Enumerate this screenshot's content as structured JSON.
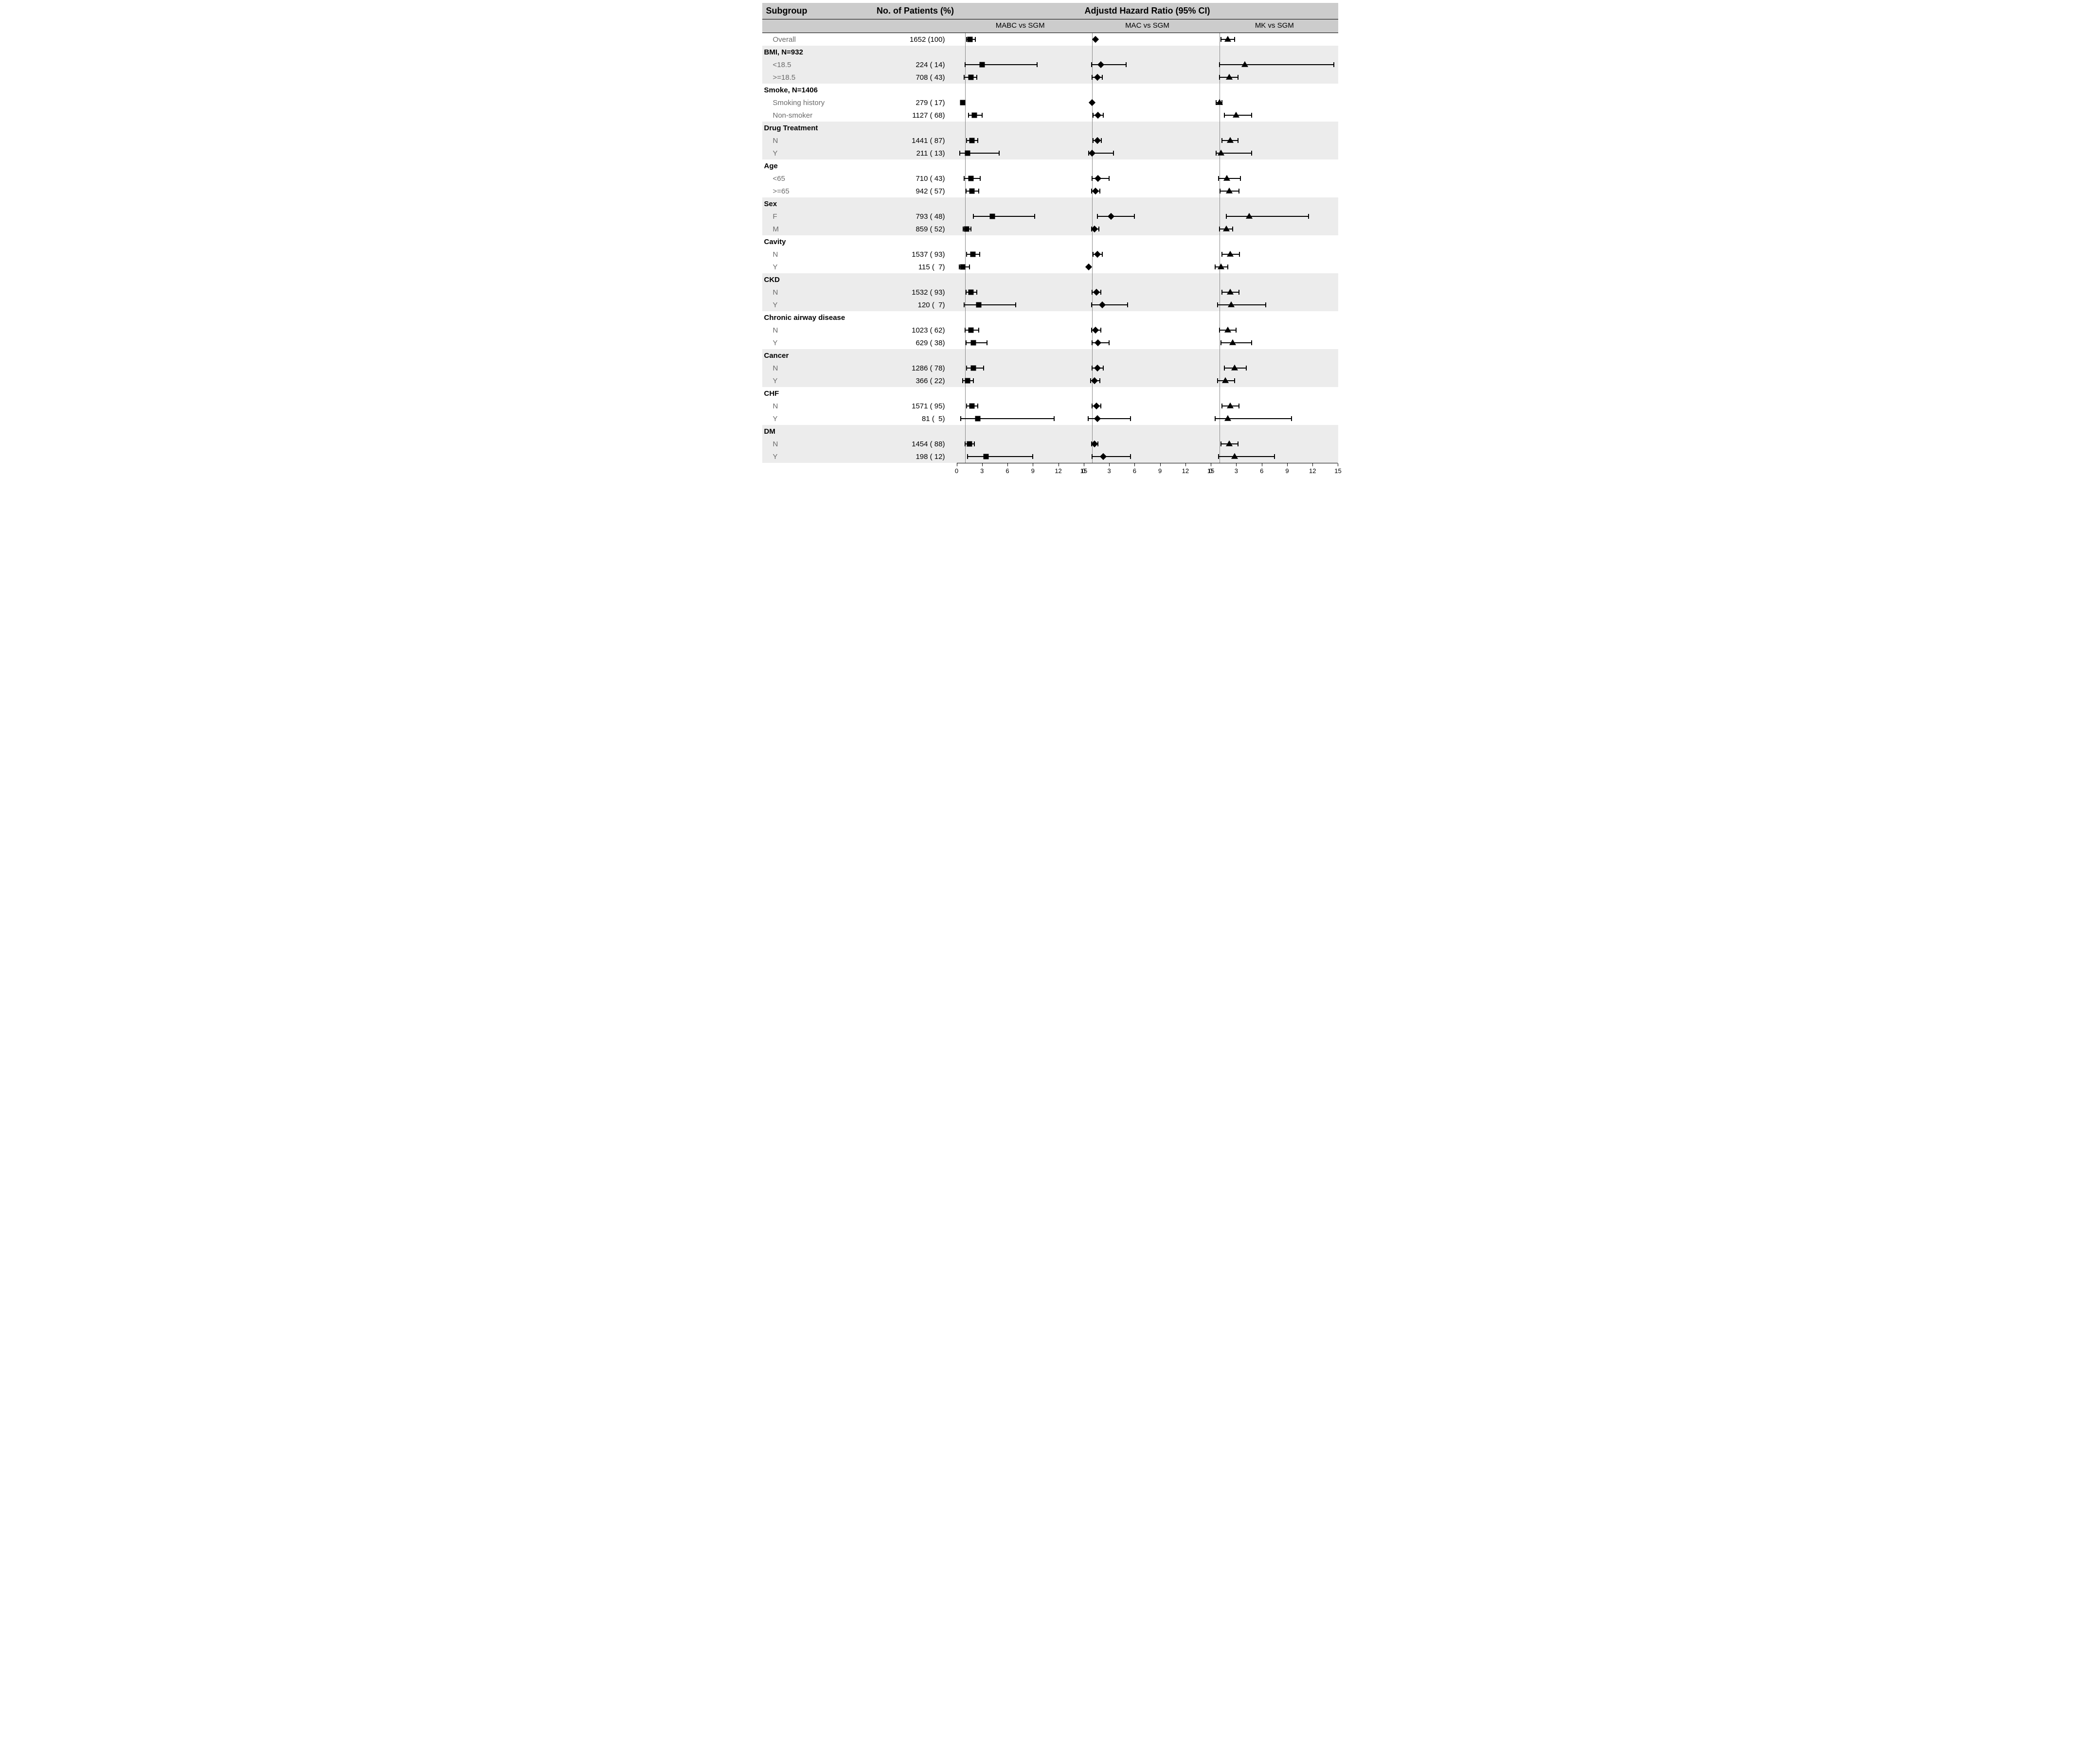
{
  "title_subgroup": "Subgroup",
  "title_n": "No. of Patients (%)",
  "title_hr": "Adjustd Hazard Ratio (95% CI)",
  "axis": {
    "min": 0,
    "max": 15,
    "ticks": [
      0,
      3,
      6,
      9,
      12,
      15
    ],
    "ref": 1
  },
  "colors": {
    "header_bg": "#cccccc",
    "stripe_odd": "#ececec",
    "stripe_even": "#ffffff",
    "text": "#000000",
    "sub_text": "#6a6a6a",
    "line": "#000000",
    "ref_line": "#888888",
    "background": "#ffffff"
  },
  "panels": [
    {
      "label": "MABC vs SGM",
      "marker": "square"
    },
    {
      "label": "MAC vs SGM",
      "marker": "diamond"
    },
    {
      "label": "MK vs SGM",
      "marker": "triangle"
    }
  ],
  "rows": [
    {
      "type": "level",
      "stripe": 0,
      "label": "Overall",
      "n": "1652 (100)",
      "est": [
        {
          "hr": 1.6,
          "lo": 1.2,
          "hi": 2.2
        },
        {
          "hr": 1.4,
          "lo": 1.4,
          "hi": 1.4
        },
        {
          "hr": 2.0,
          "lo": 1.2,
          "hi": 2.8
        }
      ]
    },
    {
      "type": "group",
      "stripe": 1,
      "label": "BMI, N=932",
      "n": ""
    },
    {
      "type": "level",
      "stripe": 1,
      "label": "<18.5",
      "n": "224 ( 14)",
      "est": [
        {
          "hr": 3.0,
          "lo": 1.0,
          "hi": 9.5
        },
        {
          "hr": 2.0,
          "lo": 0.9,
          "hi": 5.0
        },
        {
          "hr": 4.0,
          "lo": 1.0,
          "hi": 14.5
        }
      ]
    },
    {
      "type": "level",
      "stripe": 1,
      "label": ">=18.5",
      "n": "708 ( 43)",
      "est": [
        {
          "hr": 1.7,
          "lo": 0.9,
          "hi": 2.4
        },
        {
          "hr": 1.6,
          "lo": 1.0,
          "hi": 2.2
        },
        {
          "hr": 2.2,
          "lo": 1.0,
          "hi": 3.2
        }
      ]
    },
    {
      "type": "group",
      "stripe": 0,
      "label": "Smoke, N=1406",
      "n": ""
    },
    {
      "type": "level",
      "stripe": 0,
      "label": "Smoking history",
      "n": "279 ( 17)",
      "est": [
        {
          "hr": 0.7,
          "lo": 0.7,
          "hi": 0.7
        },
        {
          "hr": 1.0,
          "lo": 1.0,
          "hi": 1.0
        },
        {
          "hr": 1.0,
          "lo": 0.6,
          "hi": 1.3
        }
      ]
    },
    {
      "type": "level",
      "stripe": 0,
      "label": "Non-smoker",
      "n": "1127 ( 68)",
      "est": [
        {
          "hr": 2.1,
          "lo": 1.4,
          "hi": 3.0
        },
        {
          "hr": 1.7,
          "lo": 1.1,
          "hi": 2.3
        },
        {
          "hr": 3.0,
          "lo": 1.6,
          "hi": 4.8
        }
      ]
    },
    {
      "type": "group",
      "stripe": 1,
      "label": "Drug Treatment",
      "n": ""
    },
    {
      "type": "level",
      "stripe": 1,
      "label": "N",
      "n": "1441 ( 87)",
      "est": [
        {
          "hr": 1.8,
          "lo": 1.2,
          "hi": 2.5
        },
        {
          "hr": 1.6,
          "lo": 1.1,
          "hi": 2.1
        },
        {
          "hr": 2.3,
          "lo": 1.3,
          "hi": 3.2
        }
      ]
    },
    {
      "type": "level",
      "stripe": 1,
      "label": "Y",
      "n": "211 ( 13)",
      "est": [
        {
          "hr": 1.3,
          "lo": 0.4,
          "hi": 5.0
        },
        {
          "hr": 1.0,
          "lo": 0.6,
          "hi": 3.5
        },
        {
          "hr": 1.2,
          "lo": 0.6,
          "hi": 4.8
        }
      ]
    },
    {
      "type": "group",
      "stripe": 0,
      "label": "Age",
      "n": ""
    },
    {
      "type": "level",
      "stripe": 0,
      "label": "<65",
      "n": "710 ( 43)",
      "est": [
        {
          "hr": 1.7,
          "lo": 0.9,
          "hi": 2.8
        },
        {
          "hr": 1.7,
          "lo": 1.0,
          "hi": 3.0
        },
        {
          "hr": 1.9,
          "lo": 0.9,
          "hi": 3.5
        }
      ]
    },
    {
      "type": "level",
      "stripe": 0,
      "label": ">=65",
      "n": "942 ( 57)",
      "est": [
        {
          "hr": 1.8,
          "lo": 1.1,
          "hi": 2.6
        },
        {
          "hr": 1.4,
          "lo": 0.9,
          "hi": 1.9
        },
        {
          "hr": 2.2,
          "lo": 1.1,
          "hi": 3.3
        }
      ]
    },
    {
      "type": "group",
      "stripe": 1,
      "label": "Sex",
      "n": ""
    },
    {
      "type": "level",
      "stripe": 1,
      "label": "F",
      "n": "793 ( 48)",
      "est": [
        {
          "hr": 4.2,
          "lo": 2.0,
          "hi": 9.2
        },
        {
          "hr": 3.2,
          "lo": 1.6,
          "hi": 6.0
        },
        {
          "hr": 4.5,
          "lo": 1.8,
          "hi": 11.5
        }
      ]
    },
    {
      "type": "level",
      "stripe": 1,
      "label": "M",
      "n": "859 ( 52)",
      "est": [
        {
          "hr": 1.2,
          "lo": 0.8,
          "hi": 1.7
        },
        {
          "hr": 1.3,
          "lo": 0.9,
          "hi": 1.8
        },
        {
          "hr": 1.8,
          "lo": 1.0,
          "hi": 2.6
        }
      ]
    },
    {
      "type": "group",
      "stripe": 0,
      "label": "Cavity",
      "n": ""
    },
    {
      "type": "level",
      "stripe": 0,
      "label": "N",
      "n": "1537 ( 93)",
      "est": [
        {
          "hr": 1.9,
          "lo": 1.2,
          "hi": 2.7
        },
        {
          "hr": 1.6,
          "lo": 1.1,
          "hi": 2.2
        },
        {
          "hr": 2.3,
          "lo": 1.3,
          "hi": 3.4
        }
      ]
    },
    {
      "type": "level",
      "stripe": 0,
      "label": "Y",
      "n": "115 (  7)",
      "est": [
        {
          "hr": 0.7,
          "lo": 0.3,
          "hi": 1.5
        },
        {
          "hr": 0.6,
          "lo": 0.6,
          "hi": 0.6
        },
        {
          "hr": 1.2,
          "lo": 0.5,
          "hi": 2.0
        }
      ]
    },
    {
      "type": "group",
      "stripe": 1,
      "label": "CKD",
      "n": ""
    },
    {
      "type": "level",
      "stripe": 1,
      "label": "N",
      "n": "1532 ( 93)",
      "est": [
        {
          "hr": 1.7,
          "lo": 1.1,
          "hi": 2.4
        },
        {
          "hr": 1.5,
          "lo": 1.0,
          "hi": 2.0
        },
        {
          "hr": 2.3,
          "lo": 1.3,
          "hi": 3.3
        }
      ]
    },
    {
      "type": "level",
      "stripe": 1,
      "label": "Y",
      "n": "120 (  7)",
      "est": [
        {
          "hr": 2.6,
          "lo": 0.9,
          "hi": 7.0
        },
        {
          "hr": 2.2,
          "lo": 0.9,
          "hi": 5.2
        },
        {
          "hr": 2.4,
          "lo": 0.8,
          "hi": 6.5
        }
      ]
    },
    {
      "type": "group",
      "stripe": 0,
      "label": "Chronic airway disease",
      "n": ""
    },
    {
      "type": "level",
      "stripe": 0,
      "label": "N",
      "n": "1023 ( 62)",
      "est": [
        {
          "hr": 1.7,
          "lo": 1.0,
          "hi": 2.6
        },
        {
          "hr": 1.4,
          "lo": 0.9,
          "hi": 2.0
        },
        {
          "hr": 2.0,
          "lo": 1.0,
          "hi": 3.0
        }
      ]
    },
    {
      "type": "level",
      "stripe": 0,
      "label": "Y",
      "n": "629 ( 38)",
      "est": [
        {
          "hr": 2.0,
          "lo": 1.1,
          "hi": 3.6
        },
        {
          "hr": 1.7,
          "lo": 1.0,
          "hi": 3.0
        },
        {
          "hr": 2.6,
          "lo": 1.2,
          "hi": 4.8
        }
      ]
    },
    {
      "type": "group",
      "stripe": 1,
      "label": "Cancer",
      "n": ""
    },
    {
      "type": "level",
      "stripe": 1,
      "label": "N",
      "n": "1286 ( 78)",
      "est": [
        {
          "hr": 2.0,
          "lo": 1.2,
          "hi": 3.2
        },
        {
          "hr": 1.6,
          "lo": 1.0,
          "hi": 2.3
        },
        {
          "hr": 2.8,
          "lo": 1.6,
          "hi": 4.2
        }
      ]
    },
    {
      "type": "level",
      "stripe": 1,
      "label": "Y",
      "n": "366 ( 22)",
      "est": [
        {
          "hr": 1.3,
          "lo": 0.7,
          "hi": 2.0
        },
        {
          "hr": 1.3,
          "lo": 0.8,
          "hi": 1.9
        },
        {
          "hr": 1.7,
          "lo": 0.8,
          "hi": 2.8
        }
      ]
    },
    {
      "type": "group",
      "stripe": 0,
      "label": "CHF",
      "n": ""
    },
    {
      "type": "level",
      "stripe": 0,
      "label": "N",
      "n": "1571 ( 95)",
      "est": [
        {
          "hr": 1.8,
          "lo": 1.2,
          "hi": 2.5
        },
        {
          "hr": 1.5,
          "lo": 1.0,
          "hi": 2.0
        },
        {
          "hr": 2.3,
          "lo": 1.3,
          "hi": 3.3
        }
      ]
    },
    {
      "type": "level",
      "stripe": 0,
      "label": "Y",
      "n": "81 (  5)",
      "est": [
        {
          "hr": 2.5,
          "lo": 0.5,
          "hi": 11.5
        },
        {
          "hr": 1.6,
          "lo": 0.5,
          "hi": 5.5
        },
        {
          "hr": 2.0,
          "lo": 0.5,
          "hi": 9.5
        }
      ]
    },
    {
      "type": "group",
      "stripe": 1,
      "label": "DM",
      "n": ""
    },
    {
      "type": "level",
      "stripe": 1,
      "label": "N",
      "n": "1454 ( 88)",
      "est": [
        {
          "hr": 1.5,
          "lo": 1.0,
          "hi": 2.1
        },
        {
          "hr": 1.3,
          "lo": 0.9,
          "hi": 1.7
        },
        {
          "hr": 2.2,
          "lo": 1.2,
          "hi": 3.2
        }
      ]
    },
    {
      "type": "level",
      "stripe": 1,
      "label": "Y",
      "n": "198 ( 12)",
      "est": [
        {
          "hr": 3.5,
          "lo": 1.3,
          "hi": 9.0
        },
        {
          "hr": 2.3,
          "lo": 1.0,
          "hi": 5.5
        },
        {
          "hr": 2.8,
          "lo": 0.9,
          "hi": 7.5
        }
      ]
    }
  ]
}
